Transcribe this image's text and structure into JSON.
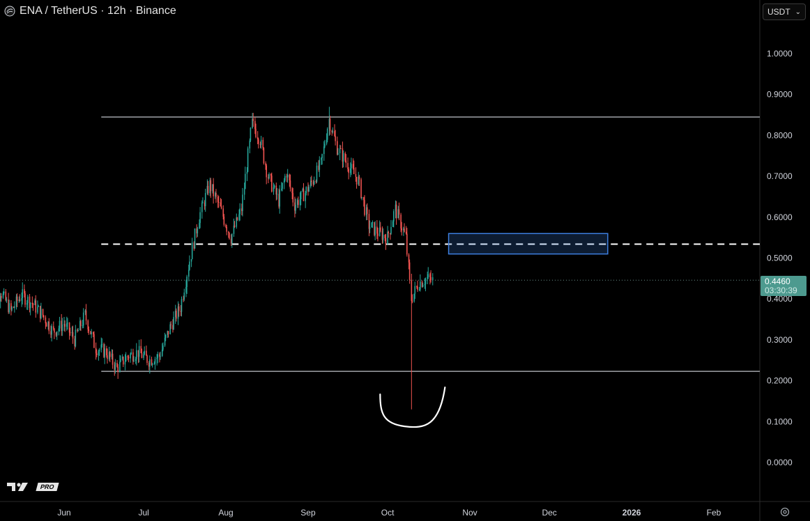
{
  "header": {
    "symbol": "ENA",
    "quote": "TetherUS",
    "interval": "12h",
    "exchange": "Binance",
    "title": "ENA / TetherUS · 12h · Binance"
  },
  "currency_select": {
    "value": "USDT"
  },
  "price_badge": {
    "price": "0.4460",
    "countdown": "03:30:39"
  },
  "branding": {
    "pro_label": "PRO"
  },
  "colors": {
    "up": "#26a69a",
    "down": "#ef5350",
    "background": "#000000",
    "zone": "#3d7fe0",
    "badge": "#4d9a8f"
  },
  "chart_data": {
    "type": "candlestick",
    "title": "ENA / TetherUS · 12h · Binance",
    "ylim": [
      -0.1,
      1.12
    ],
    "y_ticks": [
      "1.0000",
      "0.9000",
      "0.8000",
      "0.7000",
      "0.6000",
      "0.5000",
      "0.4000",
      "0.3000",
      "0.2000",
      "0.1000",
      "0.0000"
    ],
    "x_ticks": [
      {
        "label": "Jun",
        "date": "2025-06-01"
      },
      {
        "label": "Jul",
        "date": "2025-07-01"
      },
      {
        "label": "Aug",
        "date": "2025-08-01"
      },
      {
        "label": "Sep",
        "date": "2025-09-01"
      },
      {
        "label": "Oct",
        "date": "2025-10-01"
      },
      {
        "label": "Nov",
        "date": "2025-11-01"
      },
      {
        "label": "Dec",
        "date": "2025-12-01"
      },
      {
        "label": "2026",
        "date": "2026-01-01",
        "bold": true
      },
      {
        "label": "Feb",
        "date": "2026-02-01"
      }
    ],
    "close_path": [
      [
        "2025-05-04",
        0.34
      ],
      [
        "2025-05-08",
        0.42
      ],
      [
        "2025-05-12",
        0.37
      ],
      [
        "2025-05-16",
        0.41
      ],
      [
        "2025-05-20",
        0.39
      ],
      [
        "2025-05-24",
        0.36
      ],
      [
        "2025-05-28",
        0.32
      ],
      [
        "2025-06-01",
        0.34
      ],
      [
        "2025-06-05",
        0.3
      ],
      [
        "2025-06-09",
        0.36
      ],
      [
        "2025-06-13",
        0.28
      ],
      [
        "2025-06-17",
        0.27
      ],
      [
        "2025-06-21",
        0.23
      ],
      [
        "2025-06-25",
        0.26
      ],
      [
        "2025-06-29",
        0.27
      ],
      [
        "2025-07-03",
        0.25
      ],
      [
        "2025-07-07",
        0.26
      ],
      [
        "2025-07-11",
        0.33
      ],
      [
        "2025-07-15",
        0.38
      ],
      [
        "2025-07-18",
        0.48
      ],
      [
        "2025-07-22",
        0.6
      ],
      [
        "2025-07-26",
        0.68
      ],
      [
        "2025-07-30",
        0.62
      ],
      [
        "2025-08-03",
        0.55
      ],
      [
        "2025-08-07",
        0.62
      ],
      [
        "2025-08-11",
        0.83
      ],
      [
        "2025-08-14",
        0.79
      ],
      [
        "2025-08-17",
        0.7
      ],
      [
        "2025-08-21",
        0.64
      ],
      [
        "2025-08-24",
        0.71
      ],
      [
        "2025-08-27",
        0.63
      ],
      [
        "2025-08-31",
        0.66
      ],
      [
        "2025-09-03",
        0.69
      ],
      [
        "2025-09-06",
        0.73
      ],
      [
        "2025-09-09",
        0.84
      ],
      [
        "2025-09-12",
        0.77
      ],
      [
        "2025-09-16",
        0.73
      ],
      [
        "2025-09-20",
        0.69
      ],
      [
        "2025-09-24",
        0.58
      ],
      [
        "2025-09-28",
        0.56
      ],
      [
        "2025-10-01",
        0.55
      ],
      [
        "2025-10-04",
        0.62
      ],
      [
        "2025-10-08",
        0.55
      ],
      [
        "2025-10-10",
        0.4
      ],
      [
        "2025-10-13",
        0.44
      ],
      [
        "2025-10-16",
        0.45
      ],
      [
        "2025-10-18",
        0.446
      ]
    ],
    "notable_wicks": [
      {
        "date": "2025-06-22",
        "low": 0.22
      },
      {
        "date": "2025-08-11",
        "high": 0.855
      },
      {
        "date": "2025-09-09",
        "high": 0.87
      },
      {
        "date": "2025-10-10",
        "low": 0.13
      }
    ],
    "current_price": 0.446,
    "levels": [
      {
        "kind": "solid",
        "price": 0.845,
        "from": "2025-06-15",
        "to": "extend"
      },
      {
        "kind": "dashed",
        "price": 0.534,
        "from": "2025-06-15",
        "to": "extend"
      },
      {
        "kind": "solid",
        "price": 0.223,
        "from": "2025-06-15",
        "to": "extend"
      }
    ],
    "zone": {
      "from": "2025-10-24",
      "to": "2025-12-23",
      "top": 0.56,
      "bottom": 0.51
    },
    "annotation": {
      "type": "hand-drawn-arc",
      "around": "2025-10-10",
      "low": 0.085
    }
  }
}
